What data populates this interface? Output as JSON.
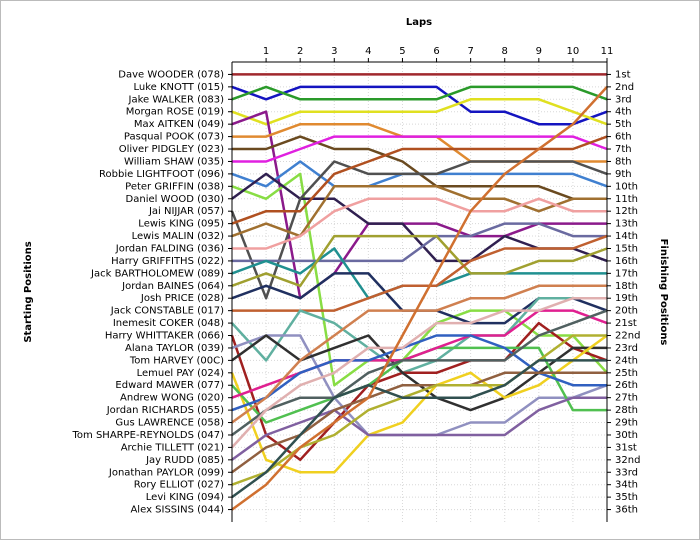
{
  "chart_data": {
    "type": "line",
    "title": "Laps",
    "y_label": "Starting Positions",
    "y2_label": "Finishing Positions",
    "x": [
      0,
      1,
      2,
      3,
      4,
      5,
      6,
      7,
      8,
      9,
      10,
      11
    ],
    "xlim": [
      0,
      11
    ],
    "xticks": [
      1,
      2,
      3,
      4,
      5,
      6,
      7,
      8,
      9,
      10,
      11
    ],
    "ylim": [
      37,
      0
    ],
    "yticks": [
      {
        "value": 1,
        "label": "Dave WOODER (078)"
      },
      {
        "value": 2,
        "label": "Luke KNOTT (015)"
      },
      {
        "value": 3,
        "label": "Jake WALKER (083)"
      },
      {
        "value": 4,
        "label": "Morgan ROSE (019)"
      },
      {
        "value": 5,
        "label": "Max AITKEN (049)"
      },
      {
        "value": 6,
        "label": "Pasqual POOK (073)"
      },
      {
        "value": 7,
        "label": "Oliver PIDGLEY (023)"
      },
      {
        "value": 8,
        "label": "William SHAW (035)"
      },
      {
        "value": 9,
        "label": "Robbie LIGHTFOOT (096)"
      },
      {
        "value": 10,
        "label": "Peter GRIFFIN (038)"
      },
      {
        "value": 11,
        "label": "Daniel WOOD (030)"
      },
      {
        "value": 12,
        "label": "Jai NIJJAR (057)"
      },
      {
        "value": 13,
        "label": "Lewis KING (095)"
      },
      {
        "value": 14,
        "label": "Lewis MALIN (032)"
      },
      {
        "value": 15,
        "label": "Jordan FALDING (036)"
      },
      {
        "value": 16,
        "label": "Harry GRIFFITHS (022)"
      },
      {
        "value": 17,
        "label": "Jack BARTHOLOMEW (089)"
      },
      {
        "value": 18,
        "label": "Jordan BAINES (064)"
      },
      {
        "value": 19,
        "label": "Josh PRICE (028)"
      },
      {
        "value": 20,
        "label": "Jack CONSTABLE (017)"
      },
      {
        "value": 21,
        "label": "Inemesit COKER (048)"
      },
      {
        "value": 22,
        "label": "Harry WHITTAKER (066)"
      },
      {
        "value": 23,
        "label": "Alana TAYLOR (039)"
      },
      {
        "value": 24,
        "label": "Tom HARVEY (00C)"
      },
      {
        "value": 25,
        "label": "Lemuel PAY (024)"
      },
      {
        "value": 26,
        "label": "Edward MAWER (077)"
      },
      {
        "value": 27,
        "label": "Andrew WONG (020)"
      },
      {
        "value": 28,
        "label": "Jordan RICHARDS (055)"
      },
      {
        "value": 29,
        "label": "Gus LAWRENCE (058)"
      },
      {
        "value": 30,
        "label": "Tom SHARPE-REYNOLDS (047)"
      },
      {
        "value": 31,
        "label": "Archie TILLETT (021)"
      },
      {
        "value": 32,
        "label": "Jay RUDD (085)"
      },
      {
        "value": 33,
        "label": "Jonathan PAYLOR (099)"
      },
      {
        "value": 34,
        "label": "Rory ELLIOT (027)"
      },
      {
        "value": 35,
        "label": "Levi KING (094)"
      },
      {
        "value": 36,
        "label": "Alex SISSINS (044)"
      }
    ],
    "y2ticks": [
      {
        "value": 1,
        "label": "1st"
      },
      {
        "value": 2,
        "label": "2nd"
      },
      {
        "value": 3,
        "label": "3rd"
      },
      {
        "value": 4,
        "label": "4th"
      },
      {
        "value": 5,
        "label": "5th"
      },
      {
        "value": 6,
        "label": "6th"
      },
      {
        "value": 7,
        "label": "7th"
      },
      {
        "value": 8,
        "label": "8th"
      },
      {
        "value": 9,
        "label": "9th"
      },
      {
        "value": 10,
        "label": "10th"
      },
      {
        "value": 11,
        "label": "11th"
      },
      {
        "value": 12,
        "label": "12th"
      },
      {
        "value": 13,
        "label": "13th"
      },
      {
        "value": 14,
        "label": "14th"
      },
      {
        "value": 15,
        "label": "15th"
      },
      {
        "value": 16,
        "label": "16th"
      },
      {
        "value": 17,
        "label": "17th"
      },
      {
        "value": 18,
        "label": "18th"
      },
      {
        "value": 19,
        "label": "19th"
      },
      {
        "value": 20,
        "label": "20th"
      },
      {
        "value": 21,
        "label": "21st"
      },
      {
        "value": 22,
        "label": "22nd"
      },
      {
        "value": 23,
        "label": "23rd"
      },
      {
        "value": 24,
        "label": "24th"
      },
      {
        "value": 25,
        "label": "25th"
      },
      {
        "value": 26,
        "label": "26th"
      },
      {
        "value": 27,
        "label": "27th"
      },
      {
        "value": 28,
        "label": "28th"
      },
      {
        "value": 29,
        "label": "29th"
      },
      {
        "value": 30,
        "label": "30th"
      },
      {
        "value": 31,
        "label": "31st"
      },
      {
        "value": 32,
        "label": "32nd"
      },
      {
        "value": 33,
        "label": "33rd"
      },
      {
        "value": 34,
        "label": "34th"
      },
      {
        "value": 35,
        "label": "35th"
      },
      {
        "value": 36,
        "label": "36th"
      }
    ],
    "grid": true,
    "series": [
      {
        "color": "#a0282d",
        "values": [
          1,
          1,
          1,
          1,
          1,
          1,
          1,
          1,
          1,
          1,
          1,
          1
        ]
      },
      {
        "color": "#1414c0",
        "values": [
          2,
          3,
          2,
          2,
          2,
          2,
          2,
          4,
          4,
          5,
          5,
          4
        ]
      },
      {
        "color": "#2a9a2a",
        "values": [
          3,
          2,
          3,
          3,
          3,
          3,
          3,
          2,
          2,
          2,
          2,
          3
        ]
      },
      {
        "color": "#e0e020",
        "values": [
          4,
          5,
          4,
          4,
          4,
          4,
          4,
          3,
          3,
          3,
          4,
          5
        ]
      },
      {
        "color": "#8b1a8b",
        "values": [
          5,
          4,
          19,
          17,
          13,
          13,
          13,
          14,
          14,
          13,
          13,
          13
        ]
      },
      {
        "color": "#e08a30",
        "values": [
          6,
          6,
          5,
          5,
          5,
          6,
          6,
          8,
          8,
          8,
          8,
          8
        ]
      },
      {
        "color": "#6a4a20",
        "values": [
          7,
          7,
          6,
          7,
          7,
          8,
          10,
          10,
          10,
          10,
          11,
          11
        ]
      },
      {
        "color": "#e020e0",
        "values": [
          8,
          8,
          7,
          6,
          6,
          6,
          6,
          6,
          6,
          6,
          6,
          7
        ]
      },
      {
        "color": "#4080d0",
        "values": [
          9,
          10,
          8,
          10,
          10,
          9,
          9,
          9,
          9,
          9,
          9,
          10
        ]
      },
      {
        "color": "#88dd44",
        "values": [
          10,
          11,
          9,
          26,
          24,
          24,
          21,
          20,
          20,
          22,
          22,
          25
        ]
      },
      {
        "color": "#302050",
        "values": [
          11,
          9,
          11,
          11,
          13,
          13,
          16,
          16,
          14,
          15,
          15,
          16
        ]
      },
      {
        "color": "#505050",
        "values": [
          12,
          19,
          11,
          8,
          9,
          9,
          9,
          8,
          8,
          8,
          8,
          9
        ]
      },
      {
        "color": "#b05020",
        "values": [
          13,
          12,
          12,
          9,
          8,
          7,
          7,
          7,
          7,
          7,
          7,
          6
        ]
      },
      {
        "color": "#a07030",
        "values": [
          14,
          13,
          14,
          10,
          10,
          10,
          10,
          11,
          11,
          12,
          11,
          11
        ]
      },
      {
        "color": "#f0a0a0",
        "values": [
          15,
          15,
          14,
          12,
          11,
          11,
          11,
          12,
          12,
          11,
          12,
          12
        ]
      },
      {
        "color": "#6a6aa0",
        "values": [
          16,
          16,
          16,
          16,
          16,
          16,
          14,
          14,
          13,
          13,
          14,
          14
        ]
      },
      {
        "color": "#209090",
        "values": [
          17,
          16,
          17,
          15,
          19,
          18,
          18,
          17,
          17,
          17,
          17,
          17
        ]
      },
      {
        "color": "#a0a030",
        "values": [
          18,
          17,
          18,
          14,
          14,
          14,
          14,
          17,
          17,
          16,
          16,
          15
        ]
      },
      {
        "color": "#203060",
        "values": [
          19,
          18,
          19,
          17,
          17,
          20,
          20,
          21,
          21,
          19,
          19,
          20
        ]
      },
      {
        "color": "#c06030",
        "values": [
          20,
          20,
          20,
          20,
          19,
          18,
          18,
          16,
          15,
          15,
          15,
          14
        ]
      },
      {
        "color": "#60b0a0",
        "values": [
          21,
          24,
          20,
          21,
          23,
          25,
          24,
          22,
          22,
          19,
          19,
          19
        ]
      },
      {
        "color": "#a02020",
        "values": [
          22,
          30,
          32,
          29,
          26,
          25,
          25,
          24,
          24,
          21,
          23,
          24
        ]
      },
      {
        "color": "#9090c0",
        "values": [
          23,
          22,
          22,
          27,
          30,
          30,
          30,
          29,
          29,
          27,
          27,
          26
        ]
      },
      {
        "color": "#303030",
        "values": [
          24,
          22,
          24,
          23,
          22,
          25,
          27,
          28,
          27,
          25,
          23,
          23
        ]
      },
      {
        "color": "#f0d020",
        "values": [
          25,
          32,
          33,
          33,
          30,
          29,
          26,
          25,
          27,
          26,
          24,
          22
        ]
      },
      {
        "color": "#50c050",
        "values": [
          26,
          29,
          28,
          27,
          26,
          24,
          23,
          23,
          23,
          23,
          28,
          28
        ]
      },
      {
        "color": "#e02090",
        "values": [
          27,
          26,
          25,
          24,
          24,
          24,
          23,
          22,
          22,
          20,
          20,
          21
        ]
      },
      {
        "color": "#3060c0",
        "values": [
          28,
          27,
          25,
          24,
          24,
          23,
          22,
          22,
          23,
          25,
          26,
          26
        ]
      },
      {
        "color": "#d08050",
        "values": [
          29,
          27,
          24,
          22,
          20,
          20,
          20,
          19,
          19,
          18,
          18,
          18
        ]
      },
      {
        "color": "#506060",
        "values": [
          30,
          28,
          27,
          27,
          25,
          24,
          24,
          24,
          24,
          22,
          21,
          20
        ]
      },
      {
        "color": "#e0b0b0",
        "values": [
          31,
          28,
          26,
          25,
          23,
          23,
          21,
          21,
          20,
          20,
          19,
          19
        ]
      },
      {
        "color": "#8060a0",
        "values": [
          32,
          30,
          29,
          28,
          30,
          30,
          30,
          30,
          30,
          28,
          27,
          27
        ]
      },
      {
        "color": "#906040",
        "values": [
          33,
          31,
          30,
          28,
          27,
          26,
          26,
          26,
          25,
          25,
          25,
          25
        ]
      },
      {
        "color": "#b0b030",
        "values": [
          34,
          33,
          31,
          30,
          28,
          27,
          26,
          26,
          26,
          24,
          22,
          22
        ]
      },
      {
        "color": "#305050",
        "values": [
          35,
          33,
          30,
          27,
          26,
          27,
          27,
          27,
          26,
          24,
          24,
          24
        ]
      },
      {
        "color": "#d07030",
        "values": [
          36,
          34,
          31,
          29,
          27,
          22,
          17,
          12,
          9,
          7,
          5,
          2
        ]
      }
    ]
  }
}
